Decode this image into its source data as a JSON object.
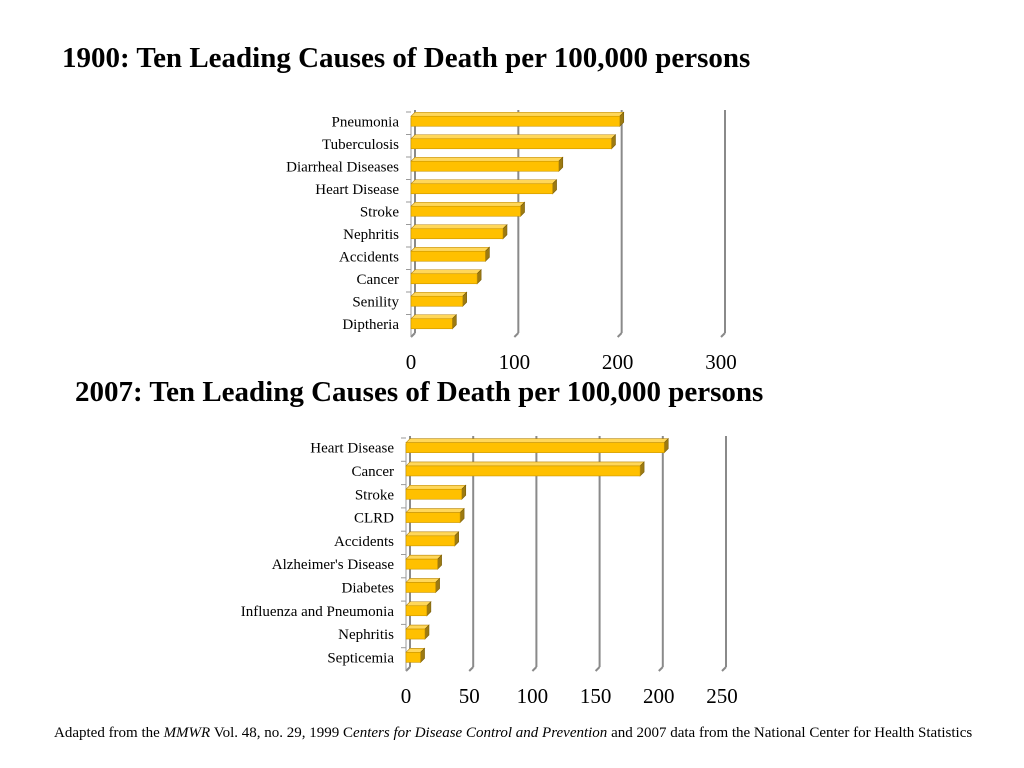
{
  "chart_data": [
    {
      "type": "bar",
      "orientation": "horizontal",
      "title": "1900:  Ten Leading Causes of Death per 100,000 persons",
      "categories": [
        "Pneumonia",
        "Tuberculosis",
        "Diarrheal Diseases",
        "Heart Disease",
        "Stroke",
        "Nephritis",
        "Accidents",
        "Cancer",
        "Senility",
        "Diptheria"
      ],
      "values": [
        202,
        194,
        143,
        137,
        106,
        89,
        72,
        64,
        50,
        40
      ],
      "xlim": [
        0,
        300
      ],
      "xticks": [
        0,
        100,
        200,
        300
      ],
      "grid": true,
      "bar_color": "#FFC000"
    },
    {
      "type": "bar",
      "orientation": "horizontal",
      "title": "2007:  Ten Leading Causes of Death per 100,000 persons",
      "categories": [
        "Heart Disease",
        "Cancer",
        "Stroke",
        "CLRD",
        "Accidents",
        "Alzheimer's Disease",
        "Diabetes",
        "Influenza and Pneumonia",
        "Nephritis",
        "Septicemia"
      ],
      "values": [
        204.3,
        185.2,
        44.1,
        42.8,
        38.5,
        25.0,
        23.4,
        16.5,
        15.0,
        11.5
      ],
      "xlim": [
        0,
        250
      ],
      "xticks": [
        0,
        50,
        100,
        150,
        200,
        250
      ],
      "grid": true,
      "bar_color": "#FFC000"
    }
  ],
  "footnote": {
    "prefix": "Adapted from the ",
    "journal": "MMWR",
    "middle": " Vol. 48, no. 29, 1999  C",
    "agency": "enters for Disease Control and Prevention",
    "suffix": " and 2007 data from the National Center for Health Statistics"
  }
}
